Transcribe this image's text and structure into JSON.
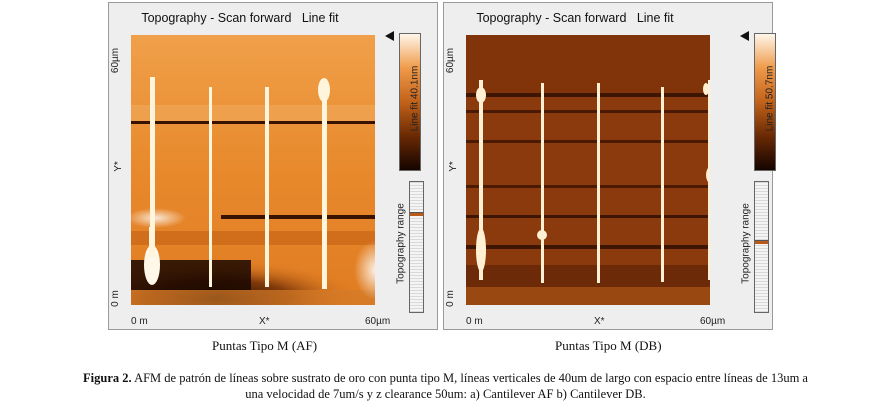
{
  "panel_a": {
    "title": "Topography - Scan forward",
    "fit": "Line fit",
    "y_top": "60µm",
    "y_mid": "Y*",
    "y_bottom": "0 m",
    "x_left": "0 m",
    "x_mid": "X*",
    "x_right": "60µm",
    "colorbar_label": "Line fit 40.1nm",
    "range_label": "Topography range",
    "caption": "Puntas Tipo M (AF)"
  },
  "panel_b": {
    "title": "Topography - Scan forward",
    "fit": "Line fit",
    "y_top": "60µm",
    "y_mid": "Y*",
    "y_bottom": "0 m",
    "x_left": "0 m",
    "x_mid": "X*",
    "x_right": "60µm",
    "colorbar_label": "Line fit 50.7nm",
    "range_label": "Topography range",
    "caption": "Puntas Tipo M (DB)"
  },
  "figure": {
    "label": "Figura 2.",
    "text_line1": "AFM de patrón de líneas sobre sustrato de oro con punta tipo M, líneas verticales de 40um de largo con espacio entre líneas de 13um a",
    "text_line2": "una velocidad de 7um/s y z clearance 50um: a) Cantilever AF b) Cantilever DB."
  },
  "colors": {
    "af_base": "#e4872e",
    "db_base": "#8a3a0c",
    "line": "#fff4dc"
  }
}
